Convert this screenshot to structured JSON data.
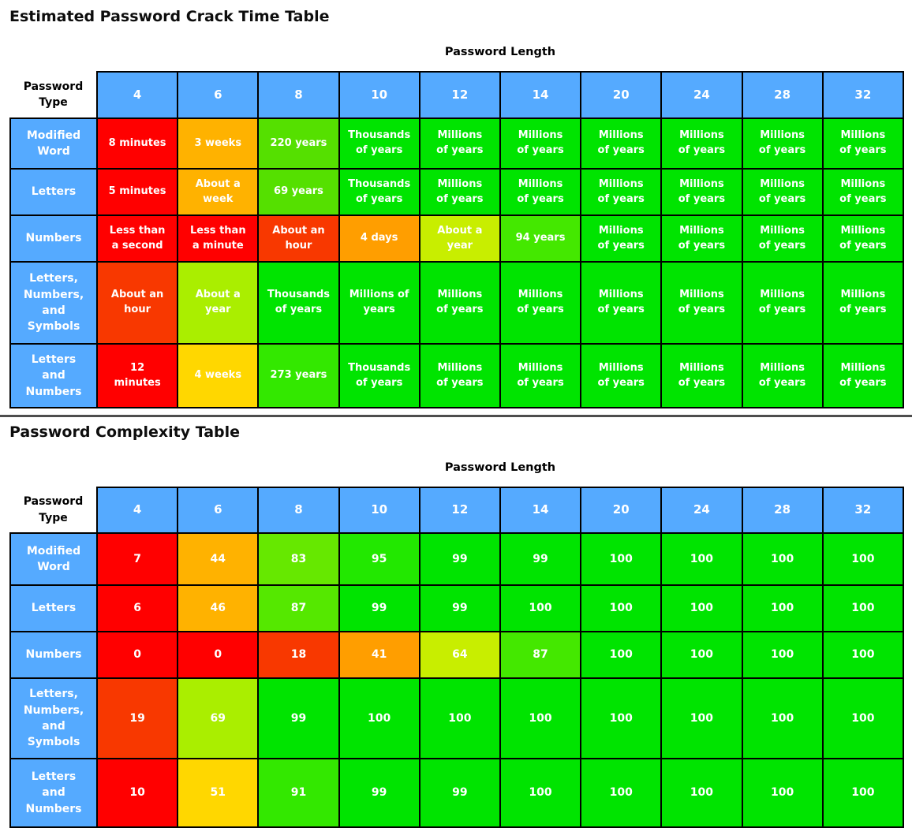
{
  "titles": {
    "crack": "Estimated Password Crack Time Table",
    "complexity": "Password Complexity Table"
  },
  "axis": {
    "length_label": "Password Length",
    "type_label": "Password\nType"
  },
  "columns": [
    "4",
    "6",
    "8",
    "10",
    "12",
    "14",
    "20",
    "24",
    "28",
    "32"
  ],
  "colors": {
    "header_blue": "#55aaff",
    "border_black": "#000000",
    "divider_gray": "#4d4d4d",
    "red": "#ff0000",
    "red_orange": "#f83800",
    "orange": "#ff9e00",
    "amber": "#ffb200",
    "gold": "#ffd700",
    "yellow_green": "#c8ee00",
    "lime_yellow": "#aaee00",
    "green_yellow": "#55e000",
    "green": "#00e400"
  },
  "crack_rows": [
    {
      "label": "Modified\nWord",
      "cells": [
        {
          "t": "8 minutes",
          "c": "#ff0000"
        },
        {
          "t": "3 weeks",
          "c": "#ffb200"
        },
        {
          "t": "220 years",
          "c": "#55e000"
        },
        {
          "t": "Thousands\nof years",
          "c": "#00e400"
        },
        {
          "t": "Millions\nof years",
          "c": "#00e400"
        },
        {
          "t": "Millions\nof years",
          "c": "#00e400"
        },
        {
          "t": "Millions\nof years",
          "c": "#00e400"
        },
        {
          "t": "Millions\nof years",
          "c": "#00e400"
        },
        {
          "t": "Millions\nof years",
          "c": "#00e400"
        },
        {
          "t": "Millions\nof years",
          "c": "#00e400"
        }
      ]
    },
    {
      "label": "Letters",
      "cells": [
        {
          "t": "5 minutes",
          "c": "#ff0000"
        },
        {
          "t": "About a\nweek",
          "c": "#ffb200"
        },
        {
          "t": "69 years",
          "c": "#55e000"
        },
        {
          "t": "Thousands\nof years",
          "c": "#00e400"
        },
        {
          "t": "Millions\nof years",
          "c": "#00e400"
        },
        {
          "t": "Millions\nof years",
          "c": "#00e400"
        },
        {
          "t": "Millions\nof years",
          "c": "#00e400"
        },
        {
          "t": "Millions\nof years",
          "c": "#00e400"
        },
        {
          "t": "Millions\nof years",
          "c": "#00e400"
        },
        {
          "t": "Millions\nof years",
          "c": "#00e400"
        }
      ]
    },
    {
      "label": "Numbers",
      "cells": [
        {
          "t": "Less than\na second",
          "c": "#ff0000"
        },
        {
          "t": "Less than\na minute",
          "c": "#ff0000"
        },
        {
          "t": "About an\nhour",
          "c": "#f83800"
        },
        {
          "t": "4 days",
          "c": "#ff9e00"
        },
        {
          "t": "About a\nyear",
          "c": "#c8ee00"
        },
        {
          "t": "94 years",
          "c": "#44e800"
        },
        {
          "t": "Millions\nof years",
          "c": "#00e400"
        },
        {
          "t": "Millions\nof years",
          "c": "#00e400"
        },
        {
          "t": "Millions\nof years",
          "c": "#00e400"
        },
        {
          "t": "Millions\nof years",
          "c": "#00e400"
        }
      ]
    },
    {
      "label": "Letters,\nNumbers,\nand\nSymbols",
      "cells": [
        {
          "t": "About an\nhour",
          "c": "#f83800"
        },
        {
          "t": "About a\nyear",
          "c": "#aaee00"
        },
        {
          "t": "Thousands\nof years",
          "c": "#00e400"
        },
        {
          "t": "Millions of\nyears",
          "c": "#00e400"
        },
        {
          "t": "Millions\nof years",
          "c": "#00e400"
        },
        {
          "t": "Millions\nof years",
          "c": "#00e400"
        },
        {
          "t": "Millions\nof years",
          "c": "#00e400"
        },
        {
          "t": "Millions\nof years",
          "c": "#00e400"
        },
        {
          "t": "Millions\nof years",
          "c": "#00e400"
        },
        {
          "t": "Millions\nof years",
          "c": "#00e400"
        }
      ]
    },
    {
      "label": "Letters\nand\nNumbers",
      "cells": [
        {
          "t": "12\nminutes",
          "c": "#ff0000"
        },
        {
          "t": "4 weeks",
          "c": "#ffd700"
        },
        {
          "t": "273 years",
          "c": "#33e800"
        },
        {
          "t": "Thousands\nof years",
          "c": "#00e400"
        },
        {
          "t": "Millions\nof years",
          "c": "#00e400"
        },
        {
          "t": "Millions\nof years",
          "c": "#00e400"
        },
        {
          "t": "Millions\nof years",
          "c": "#00e400"
        },
        {
          "t": "Millions\nof years",
          "c": "#00e400"
        },
        {
          "t": "Millions\nof years",
          "c": "#00e400"
        },
        {
          "t": "Millions\nof years",
          "c": "#00e400"
        }
      ]
    }
  ],
  "complexity_rows": [
    {
      "label": "Modified\nWord",
      "cells": [
        {
          "t": "7",
          "c": "#ff0000"
        },
        {
          "t": "44",
          "c": "#ffb200"
        },
        {
          "t": "83",
          "c": "#66e800"
        },
        {
          "t": "95",
          "c": "#22e800"
        },
        {
          "t": "99",
          "c": "#00e400"
        },
        {
          "t": "99",
          "c": "#00e400"
        },
        {
          "t": "100",
          "c": "#00e400"
        },
        {
          "t": "100",
          "c": "#00e400"
        },
        {
          "t": "100",
          "c": "#00e400"
        },
        {
          "t": "100",
          "c": "#00e400"
        }
      ]
    },
    {
      "label": "Letters",
      "cells": [
        {
          "t": "6",
          "c": "#ff0000"
        },
        {
          "t": "46",
          "c": "#ffb200"
        },
        {
          "t": "87",
          "c": "#55e800"
        },
        {
          "t": "99",
          "c": "#00e400"
        },
        {
          "t": "99",
          "c": "#00e400"
        },
        {
          "t": "100",
          "c": "#00e400"
        },
        {
          "t": "100",
          "c": "#00e400"
        },
        {
          "t": "100",
          "c": "#00e400"
        },
        {
          "t": "100",
          "c": "#00e400"
        },
        {
          "t": "100",
          "c": "#00e400"
        }
      ]
    },
    {
      "label": "Numbers",
      "cells": [
        {
          "t": "0",
          "c": "#ff0000"
        },
        {
          "t": "0",
          "c": "#ff0000"
        },
        {
          "t": "18",
          "c": "#f83800"
        },
        {
          "t": "41",
          "c": "#ff9e00"
        },
        {
          "t": "64",
          "c": "#c8ee00"
        },
        {
          "t": "87",
          "c": "#44e800"
        },
        {
          "t": "100",
          "c": "#00e400"
        },
        {
          "t": "100",
          "c": "#00e400"
        },
        {
          "t": "100",
          "c": "#00e400"
        },
        {
          "t": "100",
          "c": "#00e400"
        }
      ]
    },
    {
      "label": "Letters,\nNumbers,\nand\nSymbols",
      "cells": [
        {
          "t": "19",
          "c": "#f83800"
        },
        {
          "t": "69",
          "c": "#aaee00"
        },
        {
          "t": "99",
          "c": "#00e400"
        },
        {
          "t": "100",
          "c": "#00e400"
        },
        {
          "t": "100",
          "c": "#00e400"
        },
        {
          "t": "100",
          "c": "#00e400"
        },
        {
          "t": "100",
          "c": "#00e400"
        },
        {
          "t": "100",
          "c": "#00e400"
        },
        {
          "t": "100",
          "c": "#00e400"
        },
        {
          "t": "100",
          "c": "#00e400"
        }
      ]
    },
    {
      "label": "Letters\nand\nNumbers",
      "cells": [
        {
          "t": "10",
          "c": "#ff0000"
        },
        {
          "t": "51",
          "c": "#ffd700"
        },
        {
          "t": "91",
          "c": "#33e800"
        },
        {
          "t": "99",
          "c": "#00e400"
        },
        {
          "t": "99",
          "c": "#00e400"
        },
        {
          "t": "100",
          "c": "#00e400"
        },
        {
          "t": "100",
          "c": "#00e400"
        },
        {
          "t": "100",
          "c": "#00e400"
        },
        {
          "t": "100",
          "c": "#00e400"
        },
        {
          "t": "100",
          "c": "#00e400"
        }
      ]
    }
  ],
  "chart_data": [
    {
      "type": "table",
      "title": "Estimated Password Crack Time Table",
      "xlabel": "Password Length",
      "ylabel": "Password Type",
      "columns": [
        4,
        6,
        8,
        10,
        12,
        14,
        20,
        24,
        28,
        32
      ],
      "rows": [
        "Modified Word",
        "Letters",
        "Numbers",
        "Letters, Numbers, and Symbols",
        "Letters and Numbers"
      ],
      "values": [
        [
          "8 minutes",
          "3 weeks",
          "220 years",
          "Thousands of years",
          "Millions of years",
          "Millions of years",
          "Millions of years",
          "Millions of years",
          "Millions of years",
          "Millions of years"
        ],
        [
          "5 minutes",
          "About a week",
          "69 years",
          "Thousands of years",
          "Millions of years",
          "Millions of years",
          "Millions of years",
          "Millions of years",
          "Millions of years",
          "Millions of years"
        ],
        [
          "Less than a second",
          "Less than a minute",
          "About an hour",
          "4 days",
          "About a year",
          "94 years",
          "Millions of years",
          "Millions of years",
          "Millions of years",
          "Millions of years"
        ],
        [
          "About an hour",
          "About a year",
          "Thousands of years",
          "Millions of years",
          "Millions of years",
          "Millions of years",
          "Millions of years",
          "Millions of years",
          "Millions of years",
          "Millions of years"
        ],
        [
          "12 minutes",
          "4 weeks",
          "273 years",
          "Thousands of years",
          "Millions of years",
          "Millions of years",
          "Millions of years",
          "Millions of years",
          "Millions of years",
          "Millions of years"
        ]
      ]
    },
    {
      "type": "heatmap",
      "title": "Password Complexity Table",
      "xlabel": "Password Length",
      "ylabel": "Password Type",
      "columns": [
        4,
        6,
        8,
        10,
        12,
        14,
        20,
        24,
        28,
        32
      ],
      "rows": [
        "Modified Word",
        "Letters",
        "Numbers",
        "Letters, Numbers, and Symbols",
        "Letters and Numbers"
      ],
      "values": [
        [
          7,
          44,
          83,
          95,
          99,
          99,
          100,
          100,
          100,
          100
        ],
        [
          6,
          46,
          87,
          99,
          99,
          100,
          100,
          100,
          100,
          100
        ],
        [
          0,
          0,
          18,
          41,
          64,
          87,
          100,
          100,
          100,
          100
        ],
        [
          19,
          69,
          99,
          100,
          100,
          100,
          100,
          100,
          100,
          100
        ],
        [
          10,
          51,
          91,
          99,
          99,
          100,
          100,
          100,
          100,
          100
        ]
      ],
      "value_range": [
        0,
        100
      ]
    }
  ]
}
